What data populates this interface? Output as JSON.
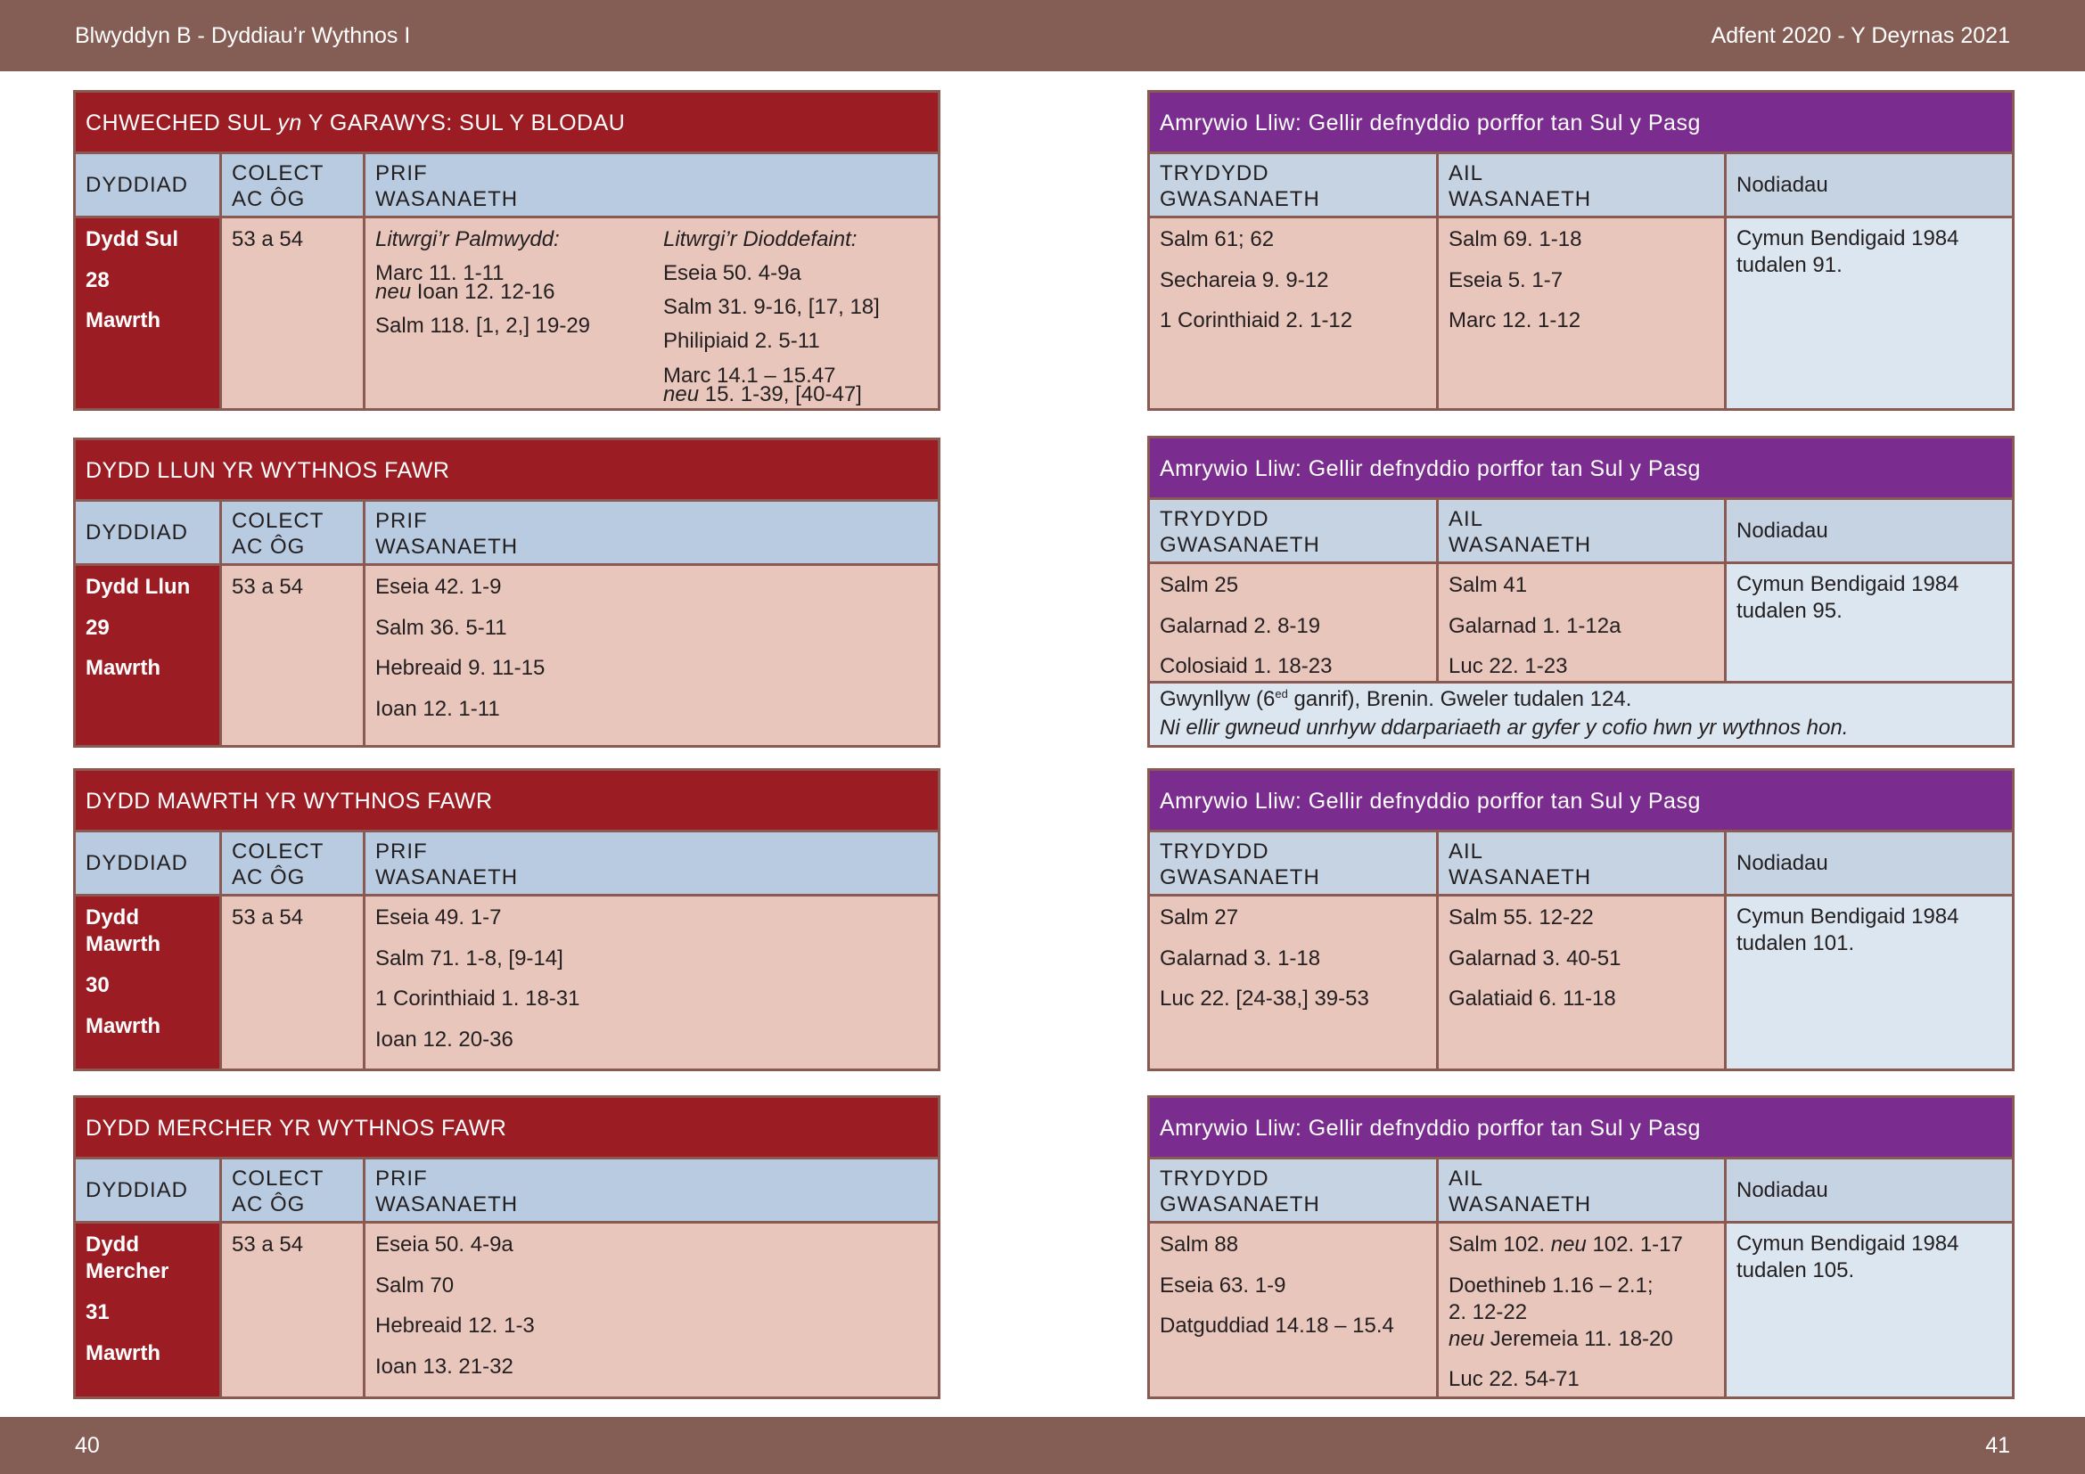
{
  "header": {
    "left": "Blwyddyn  B - Dyddiau’r Wythnos I",
    "right": "Adfent 2020 - Y Deyrnas 2021"
  },
  "footer": {
    "left_page": "40",
    "right_page": "41"
  },
  "col": {
    "dyddiad": "DYDDIAD",
    "colect1": "COLECT",
    "colect2": "AC ÔG",
    "prif1": "PRIF",
    "prif2": "WASANAETH",
    "trydydd1": "TRYDYDD",
    "trydydd2": "GWASANAETH",
    "ail1": "AIL",
    "ail2": "WASANAETH",
    "nodiadau": "Nodiadau"
  },
  "left": [
    {
      "title_a": "CHWECHED SUL ",
      "title_b": "yn",
      "title_c": " Y GARAWYS: SUL Y BLODAU",
      "date": [
        "Dydd Sul",
        "28",
        "Mawrth"
      ],
      "colect": "53 a 54",
      "palm_head": "Litwrgi’r Palmwydd:",
      "palm1": "Marc 11. 1-11",
      "palm2_neu": "neu",
      "palm2": " Ioan 12. 12-16",
      "palm3": "Salm 118. [1, 2,] 19-29",
      "dio_head": "Litwrgi’r Dioddefaint:",
      "dio1": "Eseia 50. 4-9a",
      "dio2": "Salm 31. 9-16, [17, 18]",
      "dio3": "Philipiaid 2. 5-11",
      "dio4": "Marc 14.1 – 15.47",
      "dio5_neu": "neu",
      "dio5": " 15. 1-39, [40-47]"
    },
    {
      "title": "DYDD LLUN YR WYTHNOS FAWR",
      "date": [
        "Dydd Llun",
        "29",
        "Mawrth"
      ],
      "colect": "53 a 54",
      "readings": [
        "Eseia 42. 1-9",
        "Salm 36. 5-11",
        "Hebreaid 9. 11-15",
        "Ioan 12. 1-11"
      ]
    },
    {
      "title": "DYDD MAWRTH YR WYTHNOS FAWR",
      "date": [
        "Dydd",
        "Mawrth",
        "30",
        "Mawrth"
      ],
      "colect": "53 a 54",
      "readings": [
        "Eseia 49. 1-7",
        "Salm 71. 1-8, [9-14]",
        "1 Corinthiaid 1. 18-31",
        "Ioan 12. 20-36"
      ]
    },
    {
      "title": "DYDD MERCHER YR WYTHNOS FAWR",
      "date": [
        "Dydd",
        "Mercher",
        "31",
        "Mawrth"
      ],
      "colect": "53 a 54",
      "readings": [
        "Eseia 50. 4-9a",
        "Salm 70",
        "Hebreaid 12. 1-3",
        "Ioan 13. 21-32"
      ]
    }
  ],
  "right": [
    {
      "title": "Amrywio Lliw: Gellir defnyddio porffor tan Sul y Pasg",
      "third": [
        "Salm 61; 62",
        "Sechareia 9. 9-12",
        "1 Corinthiaid 2. 1-12"
      ],
      "second": [
        "Salm 69. 1-18",
        "Eseia 5. 1-7",
        "Marc 12. 1-12"
      ],
      "notes1": "Cymun Bendigaid 1984",
      "notes2": "tudalen 91."
    },
    {
      "title": "Amrywio Lliw: Gellir defnyddio porffor tan Sul y Pasg",
      "third": [
        "Salm 25",
        "Galarnad 2. 8-19",
        "Colosiaid 1. 18-23"
      ],
      "second": [
        "Salm 41",
        "Galarnad 1. 1-12a",
        "Luc 22. 1-23"
      ],
      "notes1": "Cymun Bendigaid 1984",
      "notes2": "tudalen 95.",
      "extra_a": "Gwynllyw (6",
      "extra_sup": "ed",
      "extra_b": " ganrif), Brenin. Gweler tudalen 124.",
      "extra_line2": "Ni ellir gwneud unrhyw ddarpariaeth ar gyfer y cofio hwn yr wythnos hon."
    },
    {
      "title": "Amrywio Lliw: Gellir defnyddio porffor tan Sul y Pasg",
      "third": [
        "Salm 27",
        "Galarnad 3. 1-18",
        "Luc 22. [24-38,] 39-53"
      ],
      "second": [
        "Salm 55. 12-22",
        "Galarnad 3. 40-51",
        "Galatiaid 6. 11-18"
      ],
      "notes1": "Cymun Bendigaid 1984",
      "notes2": "tudalen 101."
    },
    {
      "title": "Amrywio Lliw: Gellir defnyddio porffor tan Sul y Pasg",
      "third": [
        "Salm 88",
        "Eseia 63. 1-9",
        "Datguddiad 14.18 – 15.4"
      ],
      "second_a": "Salm 102. ",
      "second_neu": "neu",
      "second_b": " 102. 1-17",
      "second2": "Doethineb 1.16 – 2.1;",
      "second3": "2. 12-22",
      "second4_neu": "neu",
      "second4": " Jeremeia 11. 18-20",
      "second5": "Luc 22. 54-71",
      "notes1": "Cymun Bendigaid 1984",
      "notes2": "tudalen 105."
    }
  ]
}
